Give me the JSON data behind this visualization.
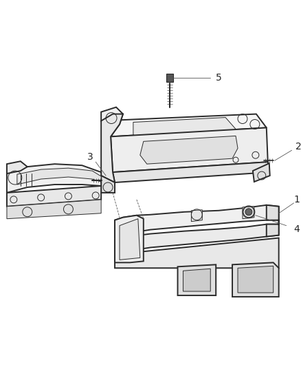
{
  "bg_color": "#ffffff",
  "line_color": "#2a2a2a",
  "label_color": "#222222",
  "fig_width": 4.38,
  "fig_height": 5.33,
  "dpi": 100,
  "label_fontsize": 10,
  "lw_main": 1.4,
  "lw_thin": 0.7,
  "lw_leader": 0.6
}
